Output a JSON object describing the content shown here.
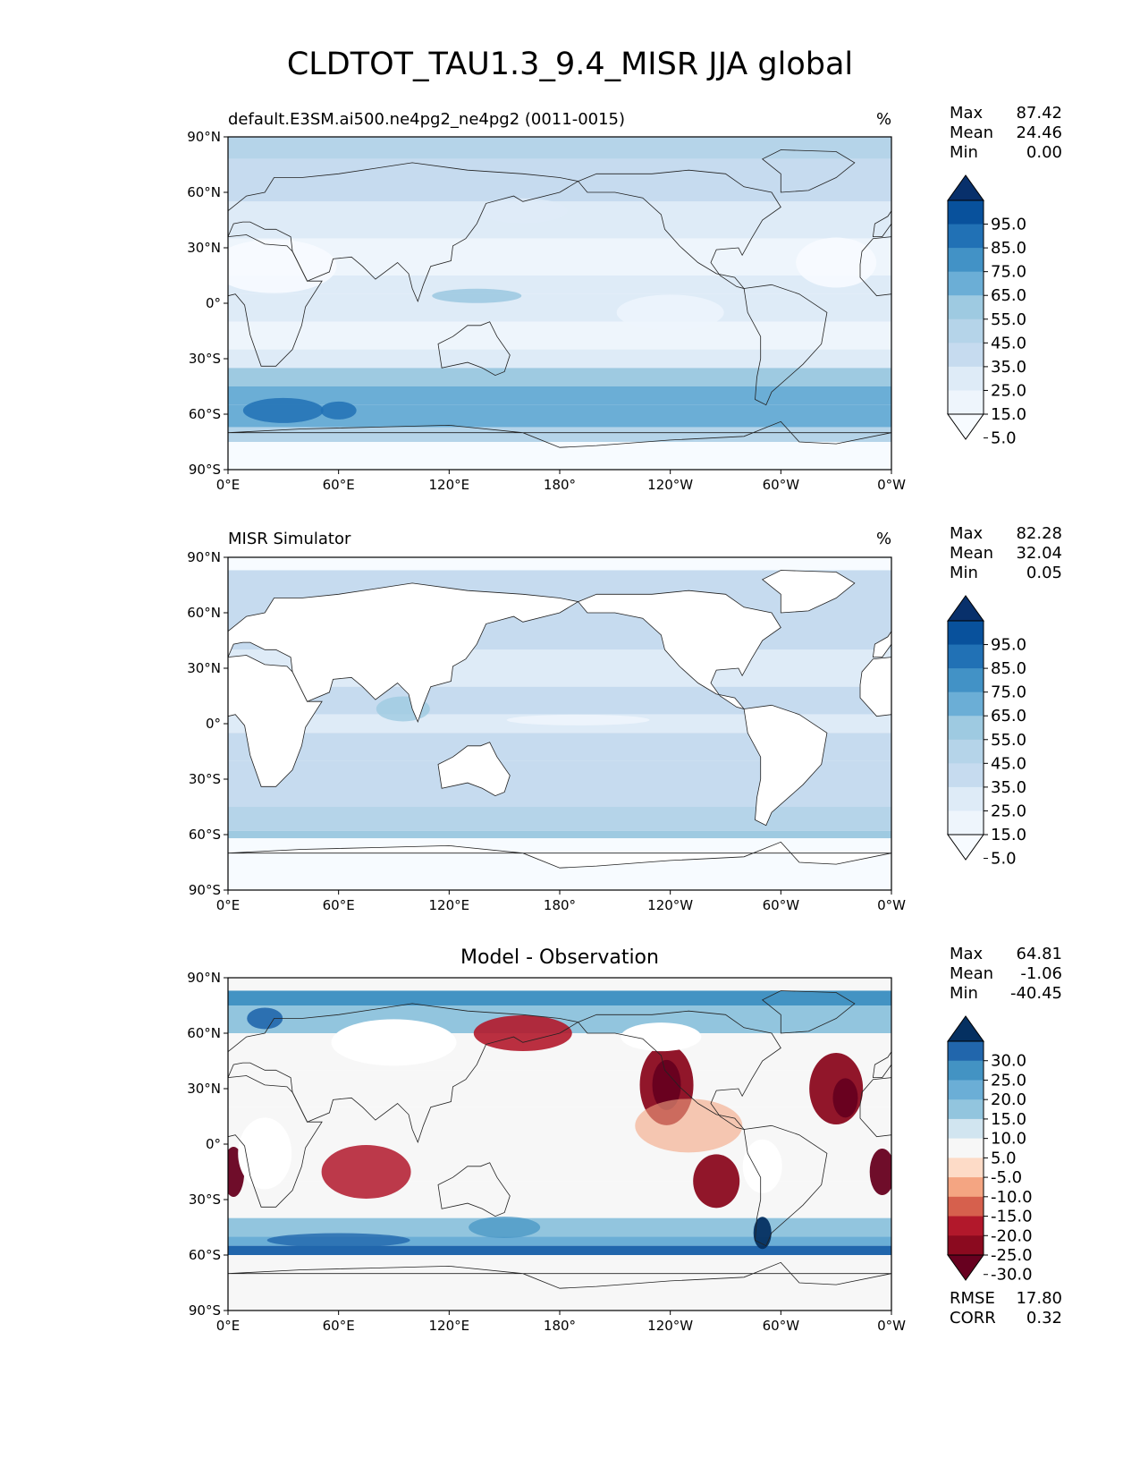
{
  "title": "CLDTOT_TAU1.3_9.4_MISR JJA global",
  "panels": [
    {
      "title_left": "default.E3SM.ai500.ne4pg2_ne4pg2 (0011-0015)",
      "units": "%",
      "stats": [
        {
          "label": "Max",
          "value": "87.42"
        },
        {
          "label": "Mean",
          "value": "24.46"
        },
        {
          "label": "Min",
          "value": "0.00"
        }
      ]
    },
    {
      "title_left": "MISR Simulator",
      "units": "%",
      "stats": [
        {
          "label": "Max",
          "value": "82.28"
        },
        {
          "label": "Mean",
          "value": "32.04"
        },
        {
          "label": "Min",
          "value": "0.05"
        }
      ]
    },
    {
      "title_center": "Model - Observation",
      "stats": [
        {
          "label": "Max",
          "value": "64.81"
        },
        {
          "label": "Mean",
          "value": "-1.06"
        },
        {
          "label": "Min",
          "value": "-40.45"
        }
      ],
      "metrics": [
        {
          "label": "RMSE",
          "value": "17.80"
        },
        {
          "label": "CORR",
          "value": "0.32"
        }
      ]
    }
  ],
  "axes": {
    "x_ticks": [
      "0°E",
      "60°E",
      "120°E",
      "180°",
      "120°W",
      "60°W",
      "0°W"
    ],
    "y_ticks": [
      "90°N",
      "60°N",
      "30°N",
      "0°",
      "30°S",
      "60°S",
      "90°S"
    ]
  },
  "colorbars": {
    "sequential": {
      "levels": [
        "95.0",
        "85.0",
        "75.0",
        "65.0",
        "55.0",
        "45.0",
        "35.0",
        "25.0",
        "15.0",
        "5.0"
      ],
      "colors": [
        "#08306b",
        "#08519c",
        "#2171b5",
        "#4292c6",
        "#6baed6",
        "#9ecae1",
        "#b5d4e9",
        "#c6dbef",
        "#deebf7",
        "#eef5fc",
        "#f7fbff"
      ]
    },
    "diverging": {
      "levels": [
        "30.0",
        "25.0",
        "20.0",
        "15.0",
        "10.0",
        "5.0",
        "-5.0",
        "-10.0",
        "-15.0",
        "-20.0",
        "-25.0",
        "-30.0"
      ],
      "colors": [
        "#053061",
        "#2166ac",
        "#4393c3",
        "#6baed6",
        "#92c5de",
        "#d1e5f0",
        "#f7f7f7",
        "#fddbc7",
        "#f4a582",
        "#d6604d",
        "#b2182b",
        "#8b0a1f",
        "#67001f"
      ]
    }
  },
  "chart_data": [
    {
      "type": "heatmap",
      "title": "default.E3SM.ai500.ne4pg2_ne4pg2 (0011-0015)",
      "units": "%",
      "xlim": [
        0,
        360
      ],
      "ylim": [
        -90,
        90
      ],
      "colorbar_levels": [
        5,
        15,
        25,
        35,
        45,
        55,
        65,
        75,
        85,
        95
      ],
      "stats": {
        "max": 87.42,
        "mean": 24.46,
        "min": 0.0
      }
    },
    {
      "type": "heatmap",
      "title": "MISR Simulator",
      "units": "%",
      "xlim": [
        0,
        360
      ],
      "ylim": [
        -90,
        90
      ],
      "colorbar_levels": [
        5,
        15,
        25,
        35,
        45,
        55,
        65,
        75,
        85,
        95
      ],
      "stats": {
        "max": 82.28,
        "mean": 32.04,
        "min": 0.05
      }
    },
    {
      "type": "heatmap",
      "title": "Model - Observation",
      "xlim": [
        0,
        360
      ],
      "ylim": [
        -90,
        90
      ],
      "colorbar_levels": [
        -30,
        -25,
        -20,
        -15,
        -10,
        -5,
        5,
        10,
        15,
        20,
        25,
        30
      ],
      "stats": {
        "max": 64.81,
        "mean": -1.06,
        "min": -40.45,
        "rmse": 17.8,
        "corr": 0.32
      }
    }
  ]
}
